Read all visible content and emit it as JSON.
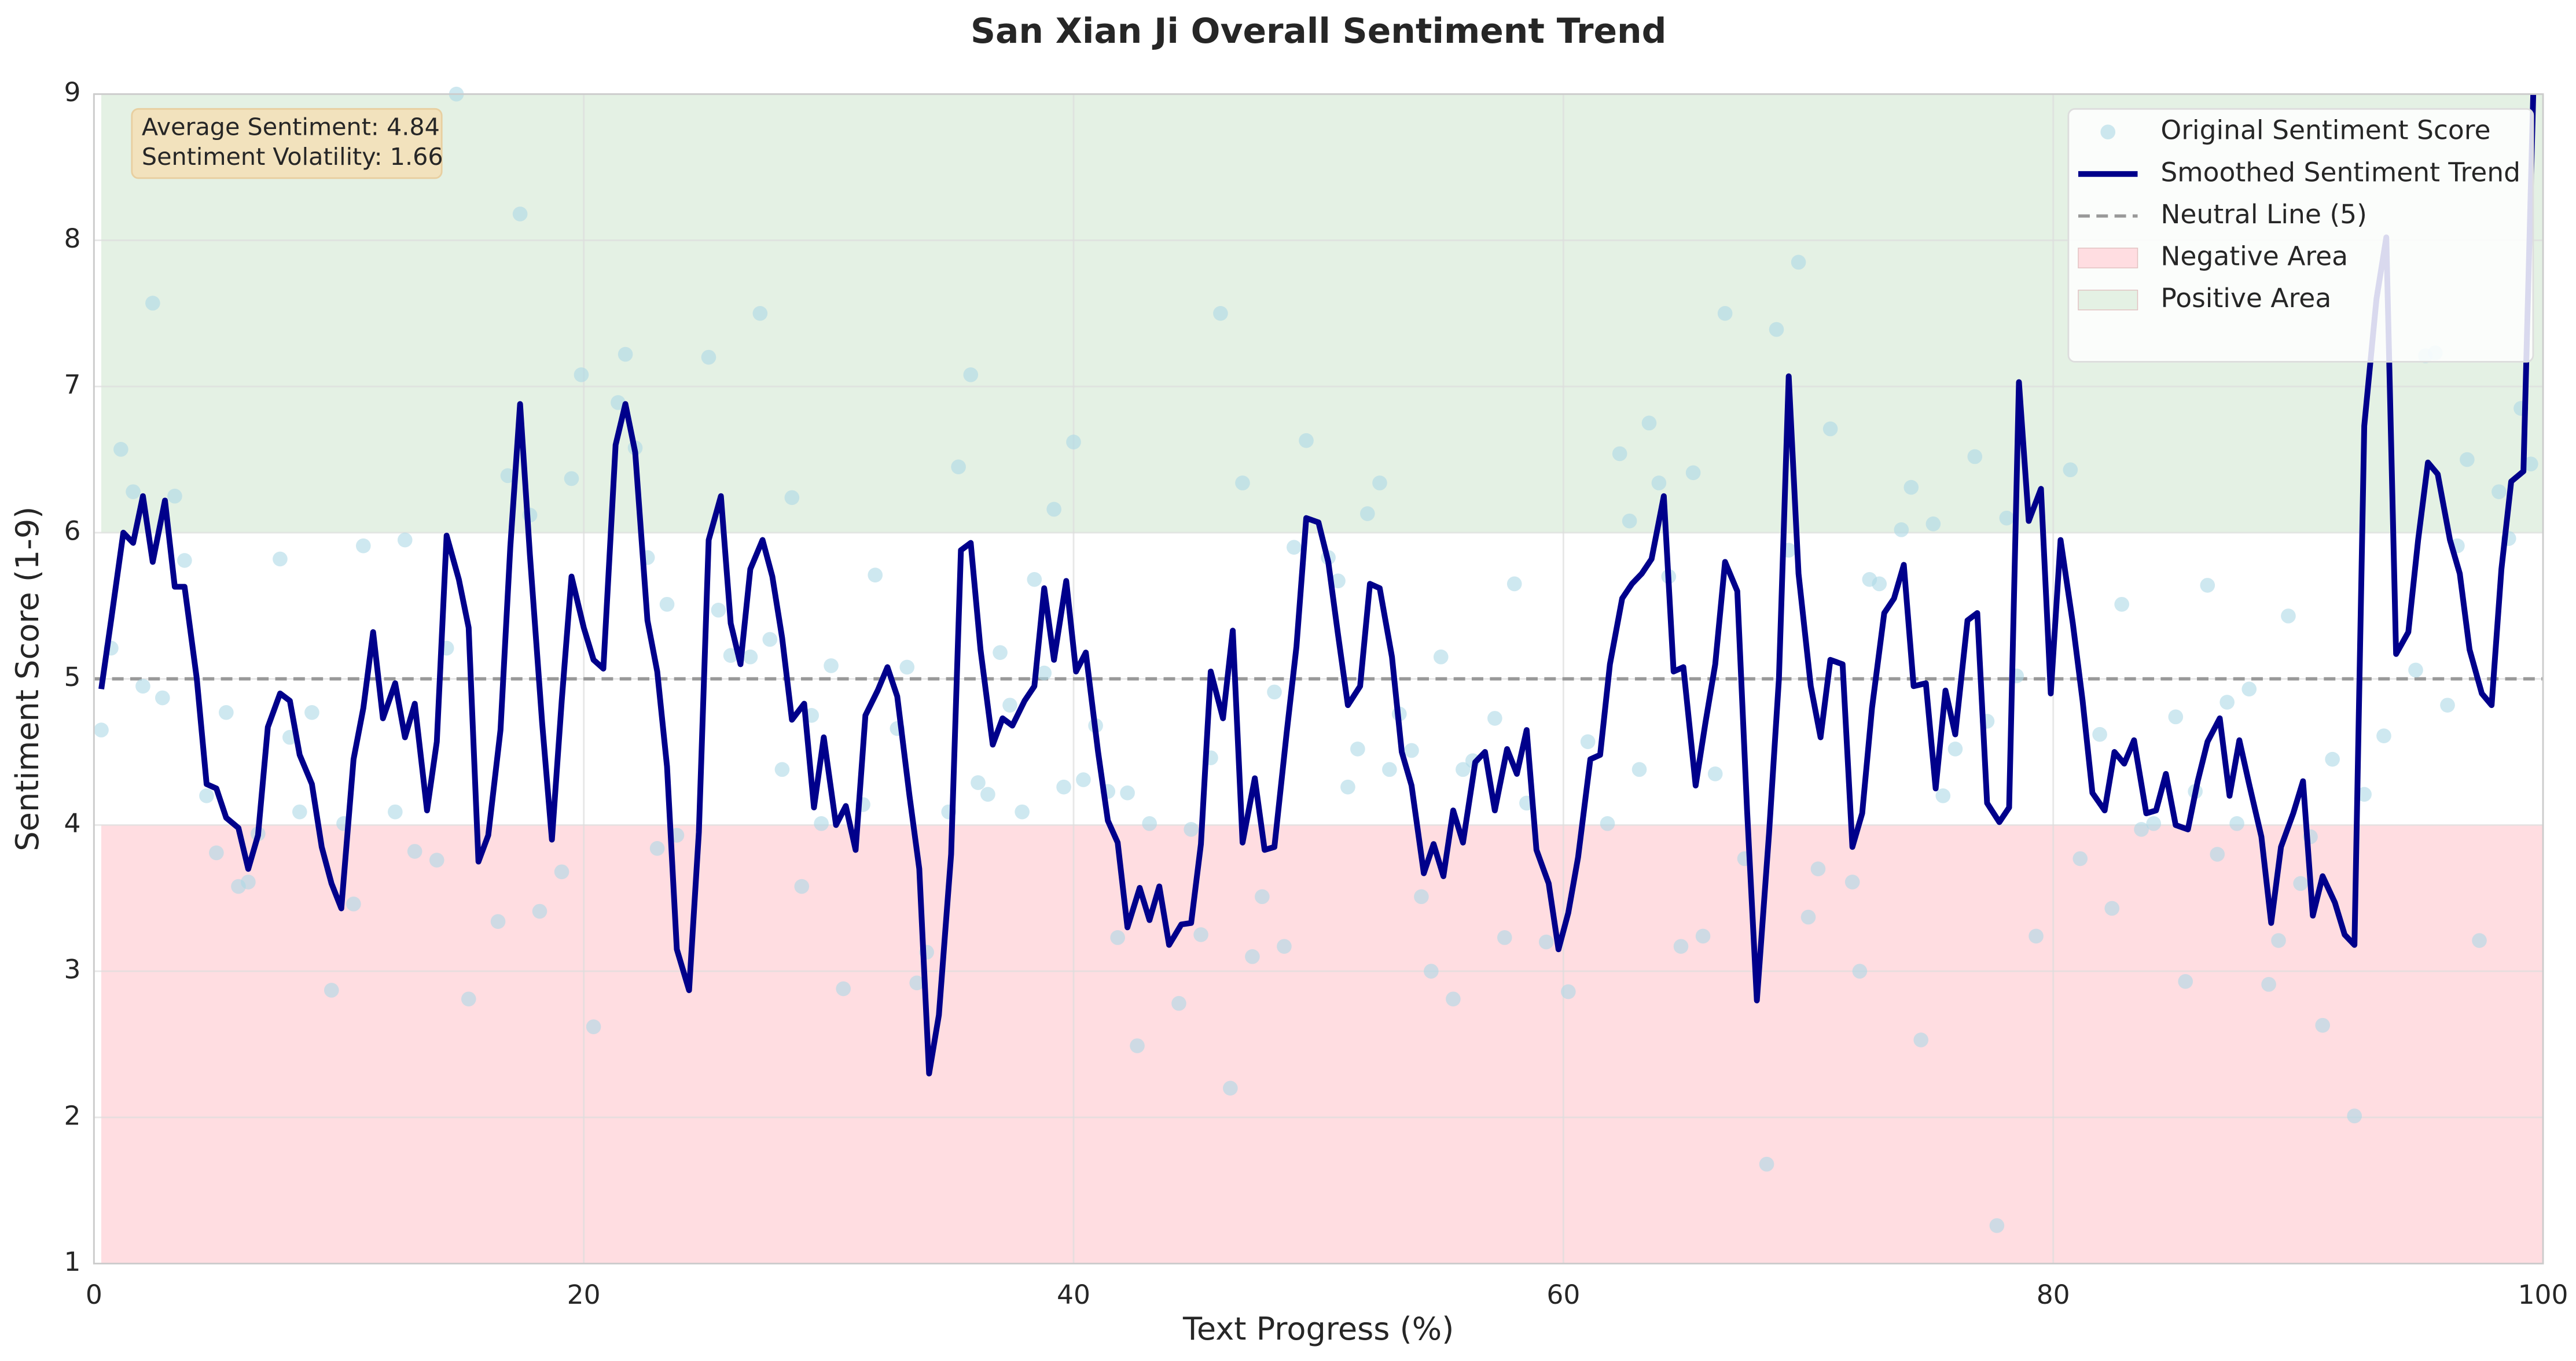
{
  "chart_data": {
    "type": "scatter-line",
    "title": "San Xian Ji Overall Sentiment Trend",
    "xlabel": "Text Progress (%)",
    "ylabel": "Sentiment Score (1-9)",
    "xlim": [
      0,
      100
    ],
    "ylim": [
      1,
      9
    ],
    "xticks": [
      0,
      20,
      40,
      60,
      80,
      100
    ],
    "yticks": [
      1,
      2,
      3,
      4,
      5,
      6,
      7,
      8,
      9
    ],
    "grid": true,
    "legend": "upper right",
    "annotations": [
      "Average Sentiment: 4.84",
      "Sentiment Volatility: 1.66"
    ],
    "reference_line": {
      "name": "Neutral Line (5)",
      "value": 5,
      "color": "#999999"
    },
    "regions": [
      {
        "name": "Negative Area",
        "range": [
          1,
          4
        ],
        "color": "#ffdde1"
      },
      {
        "name": "Positive Area",
        "range": [
          6,
          9
        ],
        "color": "#e4f1e4"
      }
    ],
    "series": [
      {
        "name": "Original Sentiment Score",
        "kind": "scatter",
        "color": "#add8e6",
        "x": [
          0.3,
          0.7,
          1.1,
          1.6,
          2.0,
          2.4,
          2.8,
          3.3,
          3.7,
          4.6,
          5.0,
          5.4,
          5.9,
          6.3,
          6.7,
          7.6,
          8.0,
          8.4,
          8.9,
          9.7,
          10.2,
          10.6,
          11.0,
          12.3,
          12.7,
          13.1,
          14.0,
          14.4,
          14.8,
          15.3,
          16.5,
          16.9,
          17.4,
          17.8,
          18.2,
          19.1,
          19.5,
          19.9,
          20.4,
          21.4,
          21.7,
          22.1,
          22.6,
          23.0,
          23.4,
          23.8,
          25.1,
          25.5,
          26.0,
          26.8,
          27.2,
          27.6,
          28.1,
          28.5,
          28.9,
          29.3,
          29.7,
          30.1,
          30.6,
          31.4,
          31.9,
          32.8,
          33.2,
          33.6,
          34.0,
          34.9,
          35.3,
          35.8,
          36.1,
          36.5,
          37.0,
          37.4,
          37.9,
          38.4,
          38.8,
          39.2,
          39.6,
          40.0,
          40.4,
          40.9,
          41.4,
          41.8,
          42.2,
          42.6,
          43.1,
          44.3,
          44.8,
          45.2,
          45.6,
          46.0,
          46.4,
          46.9,
          47.3,
          47.7,
          48.2,
          48.6,
          49.0,
          49.5,
          50.4,
          50.8,
          51.2,
          51.6,
          52.0,
          52.5,
          52.9,
          53.3,
          53.8,
          54.2,
          54.6,
          55.0,
          55.5,
          55.9,
          56.3,
          57.2,
          57.6,
          58.0,
          58.5,
          59.3,
          60.2,
          61.0,
          61.8,
          62.3,
          62.7,
          63.1,
          63.5,
          63.9,
          64.3,
          64.8,
          65.3,
          65.7,
          66.2,
          66.6,
          67.4,
          68.3,
          68.7,
          69.2,
          69.6,
          70.0,
          70.4,
          70.9,
          71.8,
          72.1,
          72.5,
          72.9,
          73.8,
          74.2,
          74.6,
          75.1,
          75.5,
          76.0,
          76.8,
          77.3,
          77.7,
          78.1,
          78.5,
          79.3,
          80.7,
          81.1,
          81.9,
          82.4,
          82.8,
          83.6,
          84.1,
          85.0,
          85.4,
          85.8,
          86.3,
          86.7,
          87.1,
          87.5,
          88.0,
          88.8,
          89.2,
          89.6,
          90.1,
          90.5,
          91.0,
          91.4,
          92.3,
          92.7,
          93.5,
          94.8,
          95.2,
          95.6,
          96.1,
          96.5,
          96.9,
          97.4,
          98.2,
          98.6,
          99.1,
          99.5
        ],
        "values": [
          4.65,
          5.21,
          6.57,
          6.28,
          4.95,
          7.57,
          4.87,
          6.25,
          5.81,
          4.2,
          3.81,
          4.77,
          3.58,
          3.61,
          3.94,
          5.82,
          4.6,
          4.09,
          4.77,
          2.87,
          4.01,
          3.46,
          5.91,
          4.09,
          5.95,
          3.82,
          3.76,
          5.21,
          9.0,
          2.81,
          3.34,
          6.39,
          8.18,
          6.12,
          3.41,
          3.68,
          6.37,
          7.08,
          2.62,
          6.89,
          7.22,
          6.58,
          5.83,
          3.84,
          5.51,
          3.93,
          7.2,
          5.47,
          5.16,
          5.15,
          7.5,
          5.27,
          4.38,
          6.24,
          3.58,
          4.75,
          4.01,
          5.09,
          2.88,
          4.14,
          5.71,
          4.66,
          5.08,
          2.92,
          3.13,
          4.09,
          6.45,
          7.08,
          4.29,
          4.21,
          5.18,
          4.82,
          4.09,
          5.68,
          5.04,
          6.16,
          4.26,
          6.62,
          4.31,
          4.68,
          4.23,
          3.23,
          4.22,
          2.49,
          4.01,
          2.78,
          3.97,
          3.25,
          4.46,
          7.5,
          2.2,
          6.34,
          3.1,
          3.51,
          4.91,
          3.17,
          5.9,
          6.63,
          5.83,
          5.67,
          4.26,
          4.52,
          6.13,
          6.34,
          4.38,
          4.76,
          4.51,
          3.51,
          3.0,
          5.15,
          2.81,
          4.38,
          4.44,
          4.73,
          3.23,
          5.65,
          4.15,
          3.2,
          2.86,
          4.57,
          4.01,
          6.54,
          6.08,
          4.38,
          6.75,
          6.34,
          5.7,
          3.17,
          6.41,
          3.24,
          4.35,
          7.5,
          3.77,
          1.68,
          7.39,
          5.88,
          7.85,
          3.37,
          3.7,
          6.71,
          3.61,
          3.0,
          5.68,
          5.65,
          6.02,
          6.31,
          2.53,
          6.06,
          4.2,
          4.52,
          6.52,
          4.71,
          1.26,
          6.1,
          5.02,
          3.24,
          6.43,
          3.77,
          4.62,
          3.43,
          5.51,
          3.97,
          4.01,
          4.74,
          2.93,
          4.23,
          5.64,
          3.8,
          4.84,
          4.01,
          4.93,
          2.91,
          3.21,
          5.43,
          3.6,
          3.92,
          2.63,
          4.45,
          2.01,
          4.21,
          4.61,
          5.06,
          7.21,
          7.23,
          4.82,
          5.91,
          6.5,
          3.21,
          6.28,
          5.96,
          6.85,
          6.47
        ]
      },
      {
        "name": "Smoothed Sentiment Trend",
        "kind": "line",
        "color": "#00008b",
        "x": [
          0.3,
          0.7,
          1.2,
          1.6,
          2.0,
          2.4,
          2.9,
          3.3,
          3.7,
          4.2,
          4.6,
          5.0,
          5.4,
          5.9,
          6.3,
          6.7,
          7.1,
          7.6,
          8.0,
          8.4,
          8.9,
          9.3,
          9.7,
          10.1,
          10.6,
          11.0,
          11.4,
          11.8,
          12.3,
          12.7,
          13.1,
          13.6,
          14.0,
          14.4,
          14.9,
          15.3,
          15.7,
          16.1,
          16.6,
          17.0,
          17.4,
          17.8,
          18.3,
          18.7,
          19.1,
          19.5,
          20.0,
          20.4,
          20.8,
          21.3,
          21.7,
          22.1,
          22.6,
          23.0,
          23.4,
          23.8,
          24.3,
          24.7,
          25.1,
          25.6,
          26.0,
          26.4,
          26.8,
          27.3,
          27.7,
          28.1,
          28.5,
          29.0,
          29.4,
          29.8,
          30.3,
          30.7,
          31.1,
          31.5,
          32.0,
          32.4,
          32.8,
          33.3,
          33.7,
          34.1,
          34.5,
          35.0,
          35.4,
          35.8,
          36.2,
          36.7,
          37.1,
          37.5,
          38.0,
          38.4,
          38.8,
          39.2,
          39.7,
          40.1,
          40.5,
          41.0,
          41.4,
          41.8,
          42.2,
          42.7,
          43.1,
          43.5,
          43.9,
          44.4,
          44.8,
          45.2,
          45.6,
          46.1,
          46.5,
          46.9,
          47.4,
          47.8,
          48.2,
          48.7,
          49.1,
          49.5,
          50.0,
          50.4,
          50.8,
          51.2,
          51.7,
          52.1,
          52.5,
          53.0,
          53.4,
          53.8,
          54.3,
          54.7,
          55.1,
          55.5,
          55.9,
          56.4,
          56.8,
          57.2,
          57.7,
          58.1,
          58.5,
          58.9,
          59.4,
          59.8,
          60.2,
          60.6,
          61.1,
          61.5,
          61.9,
          62.4,
          62.8,
          63.2,
          63.6,
          64.1,
          64.5,
          64.9,
          65.4,
          65.8,
          66.2,
          66.6,
          67.1,
          67.5,
          67.9,
          68.4,
          68.8,
          69.2,
          69.6,
          70.1,
          70.5,
          70.9,
          71.4,
          71.8,
          72.2,
          72.6,
          73.1,
          73.5,
          73.9,
          74.3,
          74.8,
          75.2,
          75.6,
          76.0,
          76.5,
          76.9,
          77.3,
          77.8,
          78.2,
          78.6,
          79.0,
          79.5,
          79.9,
          80.3,
          80.8,
          81.2,
          81.6,
          82.1,
          82.5,
          82.9,
          83.3,
          83.8,
          84.2,
          84.6,
          85.0,
          85.5,
          85.9,
          86.3,
          86.8,
          87.2,
          87.6,
          88.0,
          88.5,
          88.9,
          89.3,
          89.8,
          90.2,
          90.6,
          91.0,
          91.5,
          91.9,
          92.3,
          92.7,
          93.2,
          93.6,
          94.0,
          94.5,
          94.9,
          95.3,
          95.7,
          96.2,
          96.6,
          97.0,
          97.5,
          97.9,
          98.3,
          98.7,
          99.2,
          99.6
        ],
        "values": [
          4.93,
          5.4,
          6.0,
          5.93,
          6.25,
          5.8,
          6.22,
          5.63,
          5.63,
          5.0,
          4.28,
          4.25,
          4.05,
          3.98,
          3.7,
          3.93,
          4.67,
          4.9,
          4.85,
          4.48,
          4.28,
          3.85,
          3.6,
          3.43,
          4.45,
          4.8,
          5.32,
          4.73,
          4.97,
          4.6,
          4.83,
          4.1,
          4.57,
          5.98,
          5.68,
          5.35,
          3.75,
          3.93,
          4.65,
          5.9,
          6.88,
          5.85,
          4.7,
          3.9,
          4.85,
          5.7,
          5.35,
          5.13,
          5.07,
          6.6,
          6.88,
          6.55,
          5.4,
          5.05,
          4.4,
          3.15,
          2.87,
          3.95,
          5.95,
          6.25,
          5.38,
          5.1,
          5.75,
          5.95,
          5.7,
          5.28,
          4.72,
          4.83,
          4.12,
          4.6,
          4.0,
          4.13,
          3.83,
          4.75,
          4.92,
          5.08,
          4.88,
          4.2,
          3.7,
          2.3,
          2.7,
          3.8,
          5.88,
          5.93,
          5.2,
          4.55,
          4.73,
          4.68,
          4.85,
          4.95,
          5.62,
          5.13,
          5.67,
          5.05,
          5.18,
          4.5,
          4.03,
          3.88,
          3.3,
          3.57,
          3.35,
          3.58,
          3.18,
          3.32,
          3.33,
          3.87,
          5.05,
          4.73,
          5.33,
          3.88,
          4.32,
          3.83,
          3.85,
          4.63,
          5.22,
          6.1,
          6.07,
          5.8,
          5.3,
          4.82,
          4.95,
          5.65,
          5.62,
          5.15,
          4.5,
          4.27,
          3.67,
          3.87,
          3.65,
          4.1,
          3.88,
          4.43,
          4.5,
          4.1,
          4.52,
          4.35,
          4.65,
          3.83,
          3.6,
          3.15,
          3.4,
          3.78,
          4.45,
          4.48,
          5.1,
          5.55,
          5.65,
          5.72,
          5.82,
          6.25,
          5.05,
          5.08,
          4.27,
          4.7,
          5.1,
          5.8,
          5.6,
          4.1,
          2.8,
          3.95,
          5.0,
          7.07,
          5.72,
          4.95,
          4.6,
          5.13,
          5.1,
          3.85,
          4.08,
          4.8,
          5.45,
          5.55,
          5.78,
          4.95,
          4.97,
          4.25,
          4.92,
          4.62,
          5.4,
          5.45,
          4.15,
          4.02,
          4.12,
          7.03,
          6.08,
          6.3,
          4.9,
          5.95,
          5.38,
          4.85,
          4.22,
          4.1,
          4.5,
          4.42,
          4.58,
          4.08,
          4.1,
          4.35,
          4.0,
          3.97,
          4.3,
          4.57,
          4.73,
          4.2,
          4.58,
          4.28,
          3.92,
          3.33,
          3.85,
          4.08,
          4.3,
          3.38,
          3.65,
          3.47,
          3.25,
          3.18,
          6.73,
          7.6,
          8.02,
          5.17,
          5.32,
          5.95,
          6.48,
          6.4,
          5.95,
          5.72,
          5.2,
          4.9,
          4.82,
          5.75,
          6.35,
          6.42,
          9.0
        ]
      }
    ]
  }
}
